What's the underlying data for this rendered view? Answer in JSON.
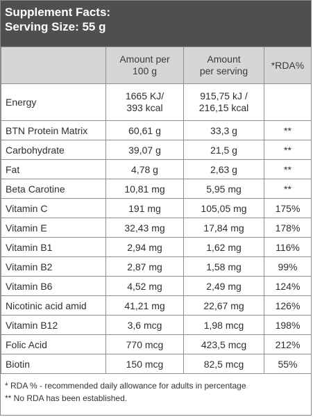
{
  "header": {
    "title": "Supplement Facts:",
    "serving": "Serving Size: 55 g"
  },
  "table": {
    "columns": [
      "",
      "Amount per\n100 g",
      "Amount\nper serving",
      "*RDA%"
    ],
    "col_per100_line1": "Amount per",
    "col_per100_line2": "100 g",
    "col_serving_line1": "Amount",
    "col_serving_line2": "per serving",
    "col_rda": "*RDA%",
    "energy": {
      "name": "Energy",
      "per100_line1": "1665 KJ/",
      "per100_line2": "393 kcal",
      "serving_line1": "915,75 kJ /",
      "serving_line2": "216,15 kcal",
      "rda": ""
    },
    "rows": [
      {
        "name": "BTN Protein Matrix",
        "per100": "60,61 g",
        "serving": "33,3 g",
        "rda": "**"
      },
      {
        "name": "Carbohydrate",
        "per100": "39,07 g",
        "serving": "21,5 g",
        "rda": "**"
      },
      {
        "name": "Fat",
        "per100": "4,78 g",
        "serving": "2,63 g",
        "rda": "**"
      },
      {
        "name": "Beta Carotine",
        "per100": "10,81 mg",
        "serving": "5,95 mg",
        "rda": "**"
      },
      {
        "name": "Vitamin C",
        "per100": "191 mg",
        "serving": "105,05 mg",
        "rda": "175%"
      },
      {
        "name": "Vitamin E",
        "per100": "32,43 mg",
        "serving": "17,84 mg",
        "rda": "178%"
      },
      {
        "name": "Vitamin B1",
        "per100": "2,94 mg",
        "serving": "1,62 mg",
        "rda": "116%"
      },
      {
        "name": "Vitamin B2",
        "per100": "2,87 mg",
        "serving": "1,58 mg",
        "rda": "99%"
      },
      {
        "name": "Vitamin B6",
        "per100": "4,52 mg",
        "serving": "2,49 mg",
        "rda": "124%"
      },
      {
        "name": "Nicotinic acid amid",
        "per100": "41,21 mg",
        "serving": "22,67 mg",
        "rda": "126%"
      },
      {
        "name": "Vitamin B12",
        "per100": "3,6 mcg",
        "serving": "1,98 mcg",
        "rda": "198%"
      },
      {
        "name": "Folic Acid",
        "per100": "770 mcg",
        "serving": "423,5 mcg",
        "rda": "212%"
      },
      {
        "name": "Biotin",
        "per100": "150 mcg",
        "serving": "82,5 mcg",
        "rda": "55%"
      }
    ]
  },
  "footnotes": {
    "rda": "* RDA % - recommended daily allowance for adults in percentage",
    "no_rda": "** No RDA has been established."
  },
  "colors": {
    "header_bg": "#4f4f4f",
    "column_header_bg": "#d6d6d6",
    "border": "#8f8f8f"
  }
}
